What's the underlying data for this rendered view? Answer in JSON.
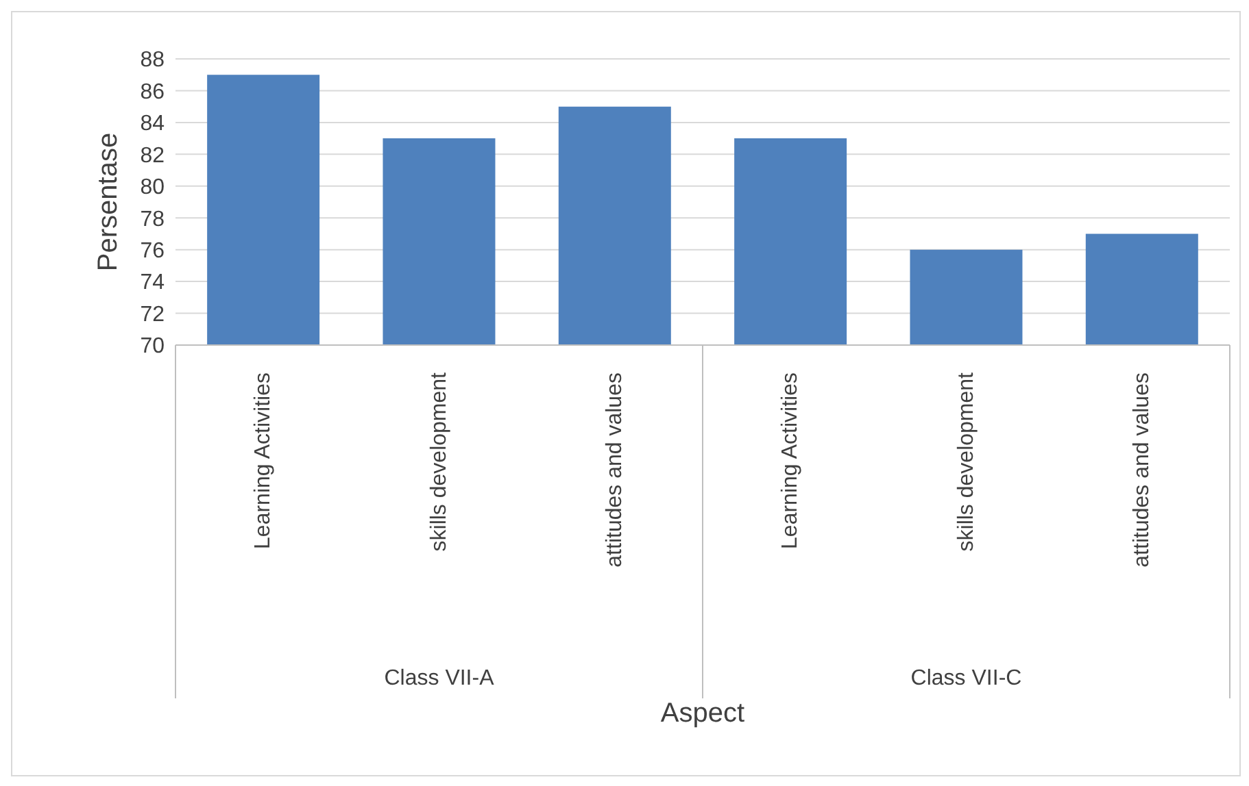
{
  "chart_data": {
    "type": "bar",
    "xlabel": "Aspect",
    "ylabel": "Persentase",
    "categories": [
      "Learning Activities",
      "skills development",
      "attitudes and values",
      "Learning Activities",
      "skills development",
      "attitudes and values"
    ],
    "values": [
      87,
      83,
      85,
      83,
      76,
      77
    ],
    "color": "#4f81bd",
    "ylim": [
      70,
      88
    ],
    "yticks": [
      70,
      72,
      74,
      76,
      78,
      80,
      82,
      84,
      86,
      88
    ],
    "grid": "y",
    "annotations": [
      "Class VII-A",
      "Class VII-C"
    ]
  }
}
